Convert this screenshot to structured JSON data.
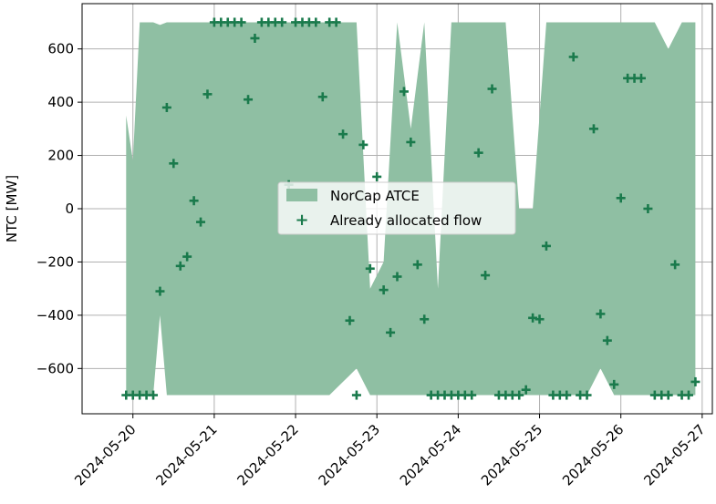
{
  "chart_data": {
    "type": "area",
    "ylabel": "NTC [MW]",
    "xlabel": "",
    "ylim": [
      -770,
      770
    ],
    "xlim": [
      "2024-05-19 09:00",
      "2024-05-27 03:00"
    ],
    "xticks": [
      "2024-05-20",
      "2024-05-21",
      "2024-05-22",
      "2024-05-23",
      "2024-05-24",
      "2024-05-25",
      "2024-05-26",
      "2024-05-27"
    ],
    "yticks": [
      -600,
      -400,
      -200,
      0,
      200,
      400,
      600
    ],
    "grid": true,
    "legend_position": "center",
    "colors": {
      "area": "#8fbfa3",
      "marker": "#1a7a4c",
      "grid": "#b0b0b0"
    },
    "series": [
      {
        "name": "NorCap ATCE",
        "kind": "band",
        "x": [
          "2024-05-19 22:00",
          "2024-05-20 00:00",
          "2024-05-20 02:00",
          "2024-05-20 04:00",
          "2024-05-20 06:00",
          "2024-05-20 08:00",
          "2024-05-20 10:00",
          "2024-05-20 12:00",
          "2024-05-20 14:00",
          "2024-05-20 16:00",
          "2024-05-20 18:00",
          "2024-05-20 20:00",
          "2024-05-20 22:00",
          "2024-05-21 02:00",
          "2024-05-21 06:00",
          "2024-05-21 10:00",
          "2024-05-21 12:00",
          "2024-05-21 14:00",
          "2024-05-21 18:00",
          "2024-05-21 22:00",
          "2024-05-22 02:00",
          "2024-05-22 06:00",
          "2024-05-22 10:00",
          "2024-05-22 14:00",
          "2024-05-22 18:00",
          "2024-05-22 22:00",
          "2024-05-23 02:00",
          "2024-05-23 06:00",
          "2024-05-23 10:00",
          "2024-05-23 14:00",
          "2024-05-23 18:00",
          "2024-05-23 22:00",
          "2024-05-24 02:00",
          "2024-05-24 06:00",
          "2024-05-24 10:00",
          "2024-05-24 14:00",
          "2024-05-24 18:00",
          "2024-05-24 22:00",
          "2024-05-25 02:00",
          "2024-05-25 06:00",
          "2024-05-25 10:00",
          "2024-05-25 14:00",
          "2024-05-25 18:00",
          "2024-05-25 22:00",
          "2024-05-26 02:00",
          "2024-05-26 06:00",
          "2024-05-26 10:00",
          "2024-05-26 14:00",
          "2024-05-26 18:00",
          "2024-05-26 22:00"
        ],
        "upper": [
          350,
          180,
          700,
          700,
          700,
          690,
          700,
          700,
          700,
          700,
          700,
          700,
          700,
          700,
          700,
          700,
          700,
          700,
          700,
          700,
          700,
          700,
          700,
          700,
          700,
          -300,
          -200,
          700,
          300,
          700,
          -300,
          700,
          700,
          700,
          700,
          700,
          0,
          0,
          700,
          700,
          700,
          700,
          700,
          700,
          700,
          700,
          700,
          600,
          700,
          700
        ],
        "lower": [
          -700,
          -700,
          -700,
          -700,
          -700,
          -400,
          -700,
          -700,
          -700,
          -700,
          -700,
          -700,
          -700,
          -700,
          -700,
          -700,
          -700,
          -700,
          -700,
          -700,
          -700,
          -700,
          -700,
          -650,
          -600,
          -700,
          -700,
          -700,
          -700,
          -700,
          -700,
          -700,
          -700,
          -700,
          -700,
          -700,
          -700,
          -700,
          -700,
          -700,
          -700,
          -700,
          -600,
          -700,
          -700,
          -700,
          -700,
          -700,
          -700,
          -700
        ]
      },
      {
        "name": "Already allocated flow",
        "kind": "scatter",
        "marker": "+",
        "x": [
          "2024-05-19 22:00",
          "2024-05-20 00:00",
          "2024-05-20 02:00",
          "2024-05-20 04:00",
          "2024-05-20 06:00",
          "2024-05-20 08:00",
          "2024-05-20 10:00",
          "2024-05-20 12:00",
          "2024-05-20 14:00",
          "2024-05-20 16:00",
          "2024-05-20 18:00",
          "2024-05-20 20:00",
          "2024-05-20 22:00",
          "2024-05-21 00:00",
          "2024-05-21 02:00",
          "2024-05-21 04:00",
          "2024-05-21 06:00",
          "2024-05-21 08:00",
          "2024-05-21 10:00",
          "2024-05-21 12:00",
          "2024-05-21 14:00",
          "2024-05-21 16:00",
          "2024-05-21 18:00",
          "2024-05-21 20:00",
          "2024-05-21 22:00",
          "2024-05-22 00:00",
          "2024-05-22 02:00",
          "2024-05-22 04:00",
          "2024-05-22 06:00",
          "2024-05-22 08:00",
          "2024-05-22 10:00",
          "2024-05-22 12:00",
          "2024-05-22 14:00",
          "2024-05-22 16:00",
          "2024-05-22 18:00",
          "2024-05-22 20:00",
          "2024-05-22 22:00",
          "2024-05-23 00:00",
          "2024-05-23 02:00",
          "2024-05-23 04:00",
          "2024-05-23 06:00",
          "2024-05-23 08:00",
          "2024-05-23 10:00",
          "2024-05-23 12:00",
          "2024-05-23 14:00",
          "2024-05-23 16:00",
          "2024-05-23 18:00",
          "2024-05-23 20:00",
          "2024-05-23 22:00",
          "2024-05-24 00:00",
          "2024-05-24 02:00",
          "2024-05-24 04:00",
          "2024-05-24 06:00",
          "2024-05-24 08:00",
          "2024-05-24 10:00",
          "2024-05-24 12:00",
          "2024-05-24 14:00",
          "2024-05-24 16:00",
          "2024-05-24 18:00",
          "2024-05-24 20:00",
          "2024-05-24 22:00",
          "2024-05-25 00:00",
          "2024-05-25 02:00",
          "2024-05-25 04:00",
          "2024-05-25 06:00",
          "2024-05-25 08:00",
          "2024-05-25 10:00",
          "2024-05-25 12:00",
          "2024-05-25 14:00",
          "2024-05-25 16:00",
          "2024-05-25 18:00",
          "2024-05-25 20:00",
          "2024-05-25 22:00",
          "2024-05-26 00:00",
          "2024-05-26 02:00",
          "2024-05-26 04:00",
          "2024-05-26 06:00",
          "2024-05-26 08:00",
          "2024-05-26 10:00",
          "2024-05-26 12:00",
          "2024-05-26 14:00",
          "2024-05-26 16:00",
          "2024-05-26 18:00",
          "2024-05-26 20:00",
          "2024-05-26 22:00"
        ],
        "y": [
          -700,
          -700,
          -700,
          -700,
          -700,
          -310,
          380,
          170,
          -215,
          -180,
          30,
          -50,
          430,
          700,
          700,
          700,
          700,
          700,
          410,
          640,
          700,
          700,
          700,
          700,
          90,
          700,
          700,
          700,
          700,
          420,
          700,
          700,
          280,
          -420,
          -700,
          240,
          -225,
          120,
          -305,
          -465,
          -255,
          440,
          250,
          -210,
          -415,
          -700,
          -700,
          -700,
          -700,
          -700,
          -700,
          -700,
          210,
          -250,
          450,
          -700,
          -700,
          -700,
          -700,
          -680,
          -410,
          -415,
          -140,
          -700,
          -700,
          -700,
          570,
          -700,
          -700,
          300,
          -395,
          -495,
          -660,
          40,
          490,
          490,
          490,
          0,
          -700,
          -700,
          -700,
          -210,
          -700,
          -700,
          -650
        ]
      }
    ]
  }
}
